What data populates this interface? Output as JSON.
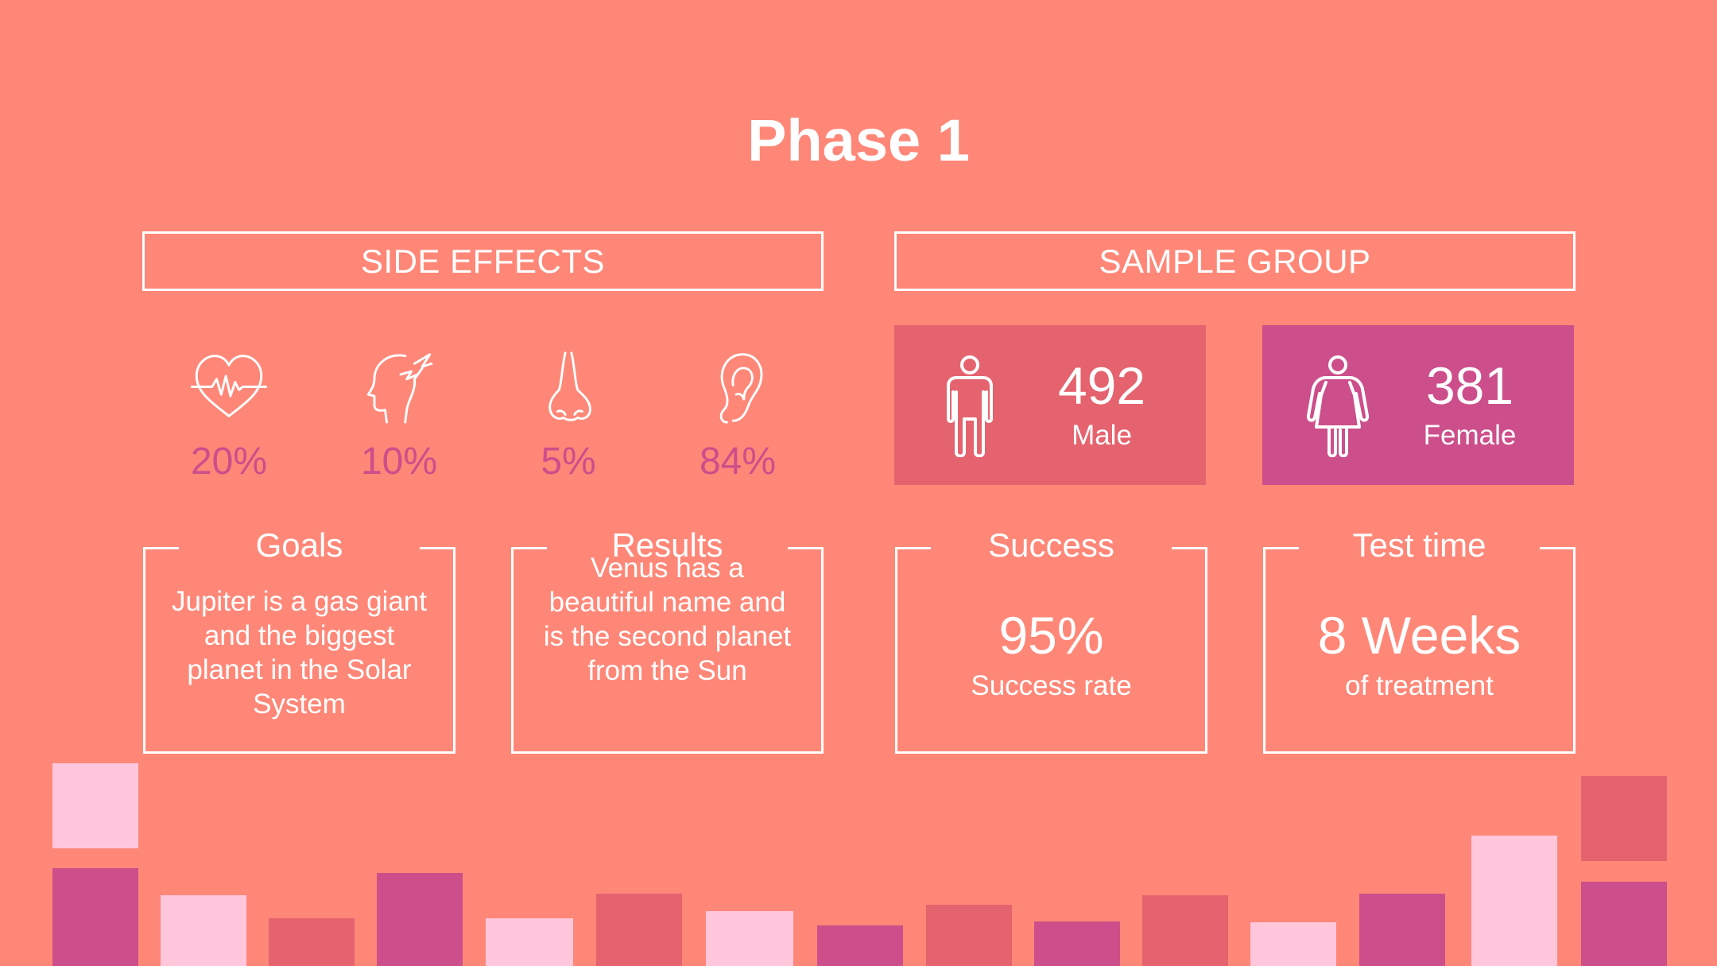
{
  "title": "Phase 1",
  "side_effects": {
    "header": "SIDE EFFECTS",
    "items": [
      {
        "icon": "heartbeat-icon",
        "value": "20%"
      },
      {
        "icon": "headache-icon",
        "value": "10%"
      },
      {
        "icon": "nose-icon",
        "value": "5%"
      },
      {
        "icon": "ear-icon",
        "value": "84%"
      }
    ]
  },
  "sample_group": {
    "header": "SAMPLE GROUP",
    "male": {
      "icon": "male-person-icon",
      "count": "492",
      "label": "Male"
    },
    "female": {
      "icon": "female-person-icon",
      "count": "381",
      "label": "Female"
    }
  },
  "goals": {
    "title": "Goals",
    "text": "Jupiter is a gas giant and the biggest planet in the Solar System"
  },
  "results": {
    "title": "Results",
    "text": "Venus has a beautiful name and is the second planet from the Sun"
  },
  "success": {
    "title": "Success",
    "value": "95%",
    "caption": "Success rate"
  },
  "test_time": {
    "title": "Test time",
    "value": "8 Weeks",
    "caption": "of treatment"
  },
  "colors": {
    "background": "#ff8778",
    "magenta": "#cc4e8a",
    "rose": "#e5636e",
    "light_pink": "#ffc6dc",
    "white": "#ffffff"
  }
}
